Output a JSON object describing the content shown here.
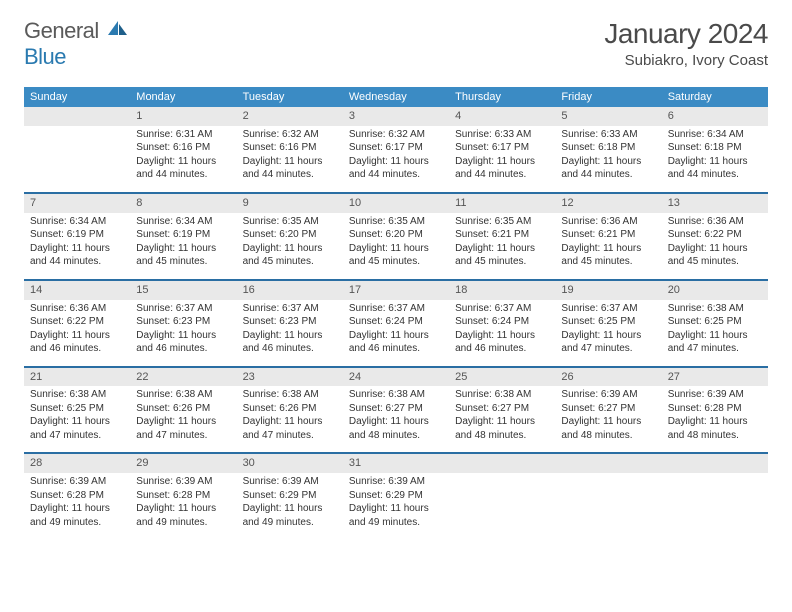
{
  "brand": {
    "part1": "General",
    "part2": "Blue"
  },
  "title": "January 2024",
  "location": "Subiakro, Ivory Coast",
  "colors": {
    "header_bg": "#3b8bc4",
    "header_text": "#ffffff",
    "row_divider": "#2a6ea3",
    "daynum_bg": "#e9e9e9",
    "logo_blue": "#2a7ab0",
    "text": "#333333"
  },
  "weekdays": [
    "Sunday",
    "Monday",
    "Tuesday",
    "Wednesday",
    "Thursday",
    "Friday",
    "Saturday"
  ],
  "start_offset": 1,
  "days": [
    {
      "n": 1,
      "sr": "6:31 AM",
      "ss": "6:16 PM",
      "dl": "11 hours and 44 minutes."
    },
    {
      "n": 2,
      "sr": "6:32 AM",
      "ss": "6:16 PM",
      "dl": "11 hours and 44 minutes."
    },
    {
      "n": 3,
      "sr": "6:32 AM",
      "ss": "6:17 PM",
      "dl": "11 hours and 44 minutes."
    },
    {
      "n": 4,
      "sr": "6:33 AM",
      "ss": "6:17 PM",
      "dl": "11 hours and 44 minutes."
    },
    {
      "n": 5,
      "sr": "6:33 AM",
      "ss": "6:18 PM",
      "dl": "11 hours and 44 minutes."
    },
    {
      "n": 6,
      "sr": "6:34 AM",
      "ss": "6:18 PM",
      "dl": "11 hours and 44 minutes."
    },
    {
      "n": 7,
      "sr": "6:34 AM",
      "ss": "6:19 PM",
      "dl": "11 hours and 44 minutes."
    },
    {
      "n": 8,
      "sr": "6:34 AM",
      "ss": "6:19 PM",
      "dl": "11 hours and 45 minutes."
    },
    {
      "n": 9,
      "sr": "6:35 AM",
      "ss": "6:20 PM",
      "dl": "11 hours and 45 minutes."
    },
    {
      "n": 10,
      "sr": "6:35 AM",
      "ss": "6:20 PM",
      "dl": "11 hours and 45 minutes."
    },
    {
      "n": 11,
      "sr": "6:35 AM",
      "ss": "6:21 PM",
      "dl": "11 hours and 45 minutes."
    },
    {
      "n": 12,
      "sr": "6:36 AM",
      "ss": "6:21 PM",
      "dl": "11 hours and 45 minutes."
    },
    {
      "n": 13,
      "sr": "6:36 AM",
      "ss": "6:22 PM",
      "dl": "11 hours and 45 minutes."
    },
    {
      "n": 14,
      "sr": "6:36 AM",
      "ss": "6:22 PM",
      "dl": "11 hours and 46 minutes."
    },
    {
      "n": 15,
      "sr": "6:37 AM",
      "ss": "6:23 PM",
      "dl": "11 hours and 46 minutes."
    },
    {
      "n": 16,
      "sr": "6:37 AM",
      "ss": "6:23 PM",
      "dl": "11 hours and 46 minutes."
    },
    {
      "n": 17,
      "sr": "6:37 AM",
      "ss": "6:24 PM",
      "dl": "11 hours and 46 minutes."
    },
    {
      "n": 18,
      "sr": "6:37 AM",
      "ss": "6:24 PM",
      "dl": "11 hours and 46 minutes."
    },
    {
      "n": 19,
      "sr": "6:37 AM",
      "ss": "6:25 PM",
      "dl": "11 hours and 47 minutes."
    },
    {
      "n": 20,
      "sr": "6:38 AM",
      "ss": "6:25 PM",
      "dl": "11 hours and 47 minutes."
    },
    {
      "n": 21,
      "sr": "6:38 AM",
      "ss": "6:25 PM",
      "dl": "11 hours and 47 minutes."
    },
    {
      "n": 22,
      "sr": "6:38 AM",
      "ss": "6:26 PM",
      "dl": "11 hours and 47 minutes."
    },
    {
      "n": 23,
      "sr": "6:38 AM",
      "ss": "6:26 PM",
      "dl": "11 hours and 47 minutes."
    },
    {
      "n": 24,
      "sr": "6:38 AM",
      "ss": "6:27 PM",
      "dl": "11 hours and 48 minutes."
    },
    {
      "n": 25,
      "sr": "6:38 AM",
      "ss": "6:27 PM",
      "dl": "11 hours and 48 minutes."
    },
    {
      "n": 26,
      "sr": "6:39 AM",
      "ss": "6:27 PM",
      "dl": "11 hours and 48 minutes."
    },
    {
      "n": 27,
      "sr": "6:39 AM",
      "ss": "6:28 PM",
      "dl": "11 hours and 48 minutes."
    },
    {
      "n": 28,
      "sr": "6:39 AM",
      "ss": "6:28 PM",
      "dl": "11 hours and 49 minutes."
    },
    {
      "n": 29,
      "sr": "6:39 AM",
      "ss": "6:28 PM",
      "dl": "11 hours and 49 minutes."
    },
    {
      "n": 30,
      "sr": "6:39 AM",
      "ss": "6:29 PM",
      "dl": "11 hours and 49 minutes."
    },
    {
      "n": 31,
      "sr": "6:39 AM",
      "ss": "6:29 PM",
      "dl": "11 hours and 49 minutes."
    }
  ],
  "labels": {
    "sunrise": "Sunrise:",
    "sunset": "Sunset:",
    "daylight": "Daylight:"
  }
}
